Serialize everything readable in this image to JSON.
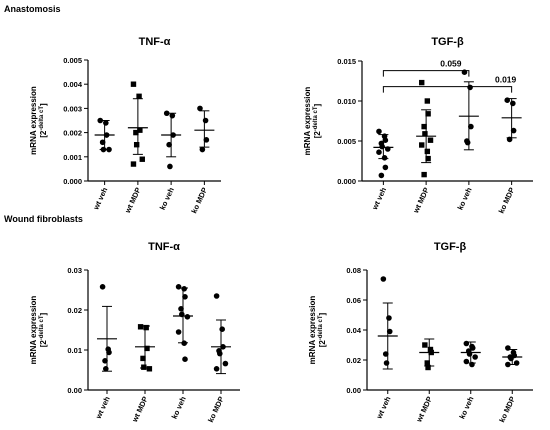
{
  "sections": [
    {
      "label": "Anastomosis"
    },
    {
      "label": "Wound fibroblasts"
    }
  ],
  "shared": {
    "ylabel_main": "mRNA expression",
    "ylabel_unit_base": "[2",
    "ylabel_unit_sup": "-delta cT",
    "ylabel_unit_close": "]"
  },
  "chart_data": [
    {
      "type": "scatter",
      "title": "TNF-α",
      "categories": [
        "wt veh",
        "wt MDP",
        "ko veh",
        "ko MDP"
      ],
      "markers": [
        "circle",
        "square",
        "circle",
        "circle"
      ],
      "yticks": [
        "0.000",
        "0.001",
        "0.002",
        "0.003",
        "0.004",
        "0.005"
      ],
      "ylim": [
        0,
        0.005
      ],
      "groups": [
        {
          "points": [
            0.0025,
            0.0024,
            0.0019,
            0.0016,
            0.0013,
            0.0013
          ],
          "mean": 0.0019,
          "err_low": 0.0013,
          "err_high": 0.0025
        },
        {
          "points": [
            0.004,
            0.0035,
            0.0021,
            0.002,
            0.0015,
            0.0009,
            0.0007
          ],
          "mean": 0.0022,
          "err_low": 0.0011,
          "err_high": 0.0034
        },
        {
          "points": [
            0.0028,
            0.0027,
            0.0019,
            0.0015,
            0.0006
          ],
          "mean": 0.0019,
          "err_low": 0.001,
          "err_high": 0.0028
        },
        {
          "points": [
            0.003,
            0.0025,
            0.0017,
            0.0013
          ],
          "mean": 0.0021,
          "err_low": 0.0014,
          "err_high": 0.0029
        }
      ]
    },
    {
      "type": "scatter",
      "title": "TGF-β",
      "categories": [
        "wt veh",
        "wt MDP",
        "ko veh",
        "ko MDP"
      ],
      "markers": [
        "circle",
        "square",
        "circle",
        "circle"
      ],
      "yticks": [
        "0.000",
        "0.005",
        "0.010",
        "0.015"
      ],
      "ylim": [
        0,
        0.015
      ],
      "groups": [
        {
          "points": [
            0.0062,
            0.0056,
            0.0051,
            0.0047,
            0.0043,
            0.004,
            0.0036,
            0.0029,
            0.0017,
            0.0007
          ],
          "mean": 0.0042,
          "err_low": 0.0028,
          "err_high": 0.0058
        },
        {
          "points": [
            0.0123,
            0.01,
            0.0084,
            0.0068,
            0.0059,
            0.0051,
            0.0045,
            0.0037,
            0.0028,
            0.0008
          ],
          "mean": 0.0056,
          "err_low": 0.0023,
          "err_high": 0.0089
        },
        {
          "points": [
            0.0136,
            0.0117,
            0.0068,
            0.005,
            0.0048
          ],
          "mean": 0.0081,
          "err_low": 0.0039,
          "err_high": 0.0124
        },
        {
          "points": [
            0.0101,
            0.0097,
            0.0063,
            0.0052
          ],
          "mean": 0.0079,
          "err_low": 0.0054,
          "err_high": 0.0103
        }
      ],
      "annotations": [
        {
          "label": "0.059",
          "from": 0,
          "to": 2,
          "y": 0.0138
        },
        {
          "label": "0.019",
          "from": 0,
          "to": 3,
          "y": 0.0118
        }
      ]
    },
    {
      "type": "scatter",
      "title": "TNF-α",
      "categories": [
        "wt veh",
        "wt MDP",
        "ko veh",
        "ko MDP"
      ],
      "markers": [
        "circle",
        "square",
        "circle",
        "circle"
      ],
      "yticks": [
        "0.00",
        "0.01",
        "0.02",
        "0.03"
      ],
      "ylim": [
        0,
        0.03
      ],
      "groups": [
        {
          "points": [
            0.0258,
            0.0102,
            0.0094,
            0.0073,
            0.0053
          ],
          "mean": 0.0128,
          "err_low": 0.0047,
          "err_high": 0.0209
        },
        {
          "points": [
            0.0158,
            0.0156,
            0.0104,
            0.0079,
            0.0057,
            0.0053
          ],
          "mean": 0.0108,
          "err_low": 0.0055,
          "err_high": 0.016
        },
        {
          "points": [
            0.0258,
            0.0253,
            0.0233,
            0.0203,
            0.0189,
            0.0183,
            0.0145,
            0.0117,
            0.0077
          ],
          "mean": 0.0185,
          "err_low": 0.0118,
          "err_high": 0.0255
        },
        {
          "points": [
            0.0235,
            0.0152,
            0.0108,
            0.0098,
            0.0091,
            0.0066,
            0.0053
          ],
          "mean": 0.0108,
          "err_low": 0.0041,
          "err_high": 0.0175
        }
      ]
    },
    {
      "type": "scatter",
      "title": "TGF-β",
      "categories": [
        "wt veh",
        "wt MDP",
        "ko veh",
        "ko MDP"
      ],
      "markers": [
        "circle",
        "square",
        "circle",
        "circle"
      ],
      "yticks": [
        "0.00",
        "0.02",
        "0.04",
        "0.06",
        "0.08"
      ],
      "ylim": [
        0,
        0.08
      ],
      "groups": [
        {
          "points": [
            0.074,
            0.048,
            0.039,
            0.024,
            0.018
          ],
          "mean": 0.036,
          "err_low": 0.014,
          "err_high": 0.058
        },
        {
          "points": [
            0.03,
            0.027,
            0.025,
            0.018,
            0.015
          ],
          "mean": 0.025,
          "err_low": 0.016,
          "err_high": 0.034
        },
        {
          "points": [
            0.031,
            0.029,
            0.028,
            0.026,
            0.024,
            0.022,
            0.019,
            0.017
          ],
          "mean": 0.025,
          "err_low": 0.018,
          "err_high": 0.032
        },
        {
          "points": [
            0.028,
            0.025,
            0.023,
            0.022,
            0.021,
            0.018,
            0.017
          ],
          "mean": 0.022,
          "err_low": 0.017,
          "err_high": 0.027
        }
      ]
    }
  ]
}
